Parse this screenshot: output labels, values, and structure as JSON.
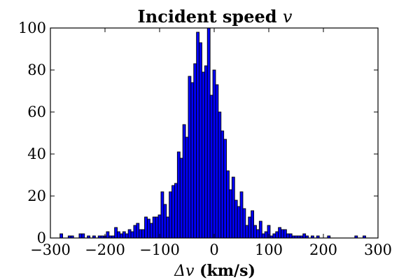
{
  "chart_data": {
    "type": "bar",
    "title_text": "Incident speed ",
    "title_var": "v",
    "xlabel_delta": "Δ",
    "xlabel_var": "v",
    "xlabel_text": " (km/s)",
    "ylabel": "",
    "xlim": [
      -300,
      300
    ],
    "ylim": [
      0,
      100
    ],
    "xticks": [
      -300,
      -200,
      -100,
      0,
      100,
      200,
      300
    ],
    "xtick_labels": [
      "−300",
      "−200",
      "−100",
      "0",
      "100",
      "200",
      "300"
    ],
    "yticks": [
      0,
      20,
      40,
      60,
      80,
      100
    ],
    "ytick_labels": [
      "0",
      "20",
      "40",
      "60",
      "80",
      "100"
    ],
    "grid": false,
    "legend": "none",
    "bar_color": "#0000ff",
    "bins": [
      {
        "x": -280,
        "count": 2
      },
      {
        "x": -270,
        "count": 0
      },
      {
        "x": -265,
        "count": 1
      },
      {
        "x": -260,
        "count": 1
      },
      {
        "x": -250,
        "count": 0
      },
      {
        "x": -245,
        "count": 2
      },
      {
        "x": -240,
        "count": 2
      },
      {
        "x": -235,
        "count": 0
      },
      {
        "x": -230,
        "count": 1
      },
      {
        "x": -225,
        "count": 0
      },
      {
        "x": -220,
        "count": 1
      },
      {
        "x": -215,
        "count": 0
      },
      {
        "x": -210,
        "count": 1
      },
      {
        "x": -205,
        "count": 1
      },
      {
        "x": -200,
        "count": 1
      },
      {
        "x": -195,
        "count": 3
      },
      {
        "x": -190,
        "count": 1
      },
      {
        "x": -185,
        "count": 1
      },
      {
        "x": -180,
        "count": 5
      },
      {
        "x": -175,
        "count": 3
      },
      {
        "x": -170,
        "count": 2
      },
      {
        "x": -165,
        "count": 3
      },
      {
        "x": -160,
        "count": 2
      },
      {
        "x": -155,
        "count": 4
      },
      {
        "x": -150,
        "count": 3
      },
      {
        "x": -145,
        "count": 6
      },
      {
        "x": -140,
        "count": 7
      },
      {
        "x": -135,
        "count": 4
      },
      {
        "x": -130,
        "count": 4
      },
      {
        "x": -125,
        "count": 10
      },
      {
        "x": -120,
        "count": 9
      },
      {
        "x": -115,
        "count": 7
      },
      {
        "x": -110,
        "count": 10
      },
      {
        "x": -105,
        "count": 10
      },
      {
        "x": -100,
        "count": 11
      },
      {
        "x": -95,
        "count": 22
      },
      {
        "x": -90,
        "count": 16
      },
      {
        "x": -85,
        "count": 10
      },
      {
        "x": -80,
        "count": 22
      },
      {
        "x": -75,
        "count": 25
      },
      {
        "x": -70,
        "count": 26
      },
      {
        "x": -65,
        "count": 41
      },
      {
        "x": -60,
        "count": 38
      },
      {
        "x": -55,
        "count": 54
      },
      {
        "x": -50,
        "count": 48
      },
      {
        "x": -45,
        "count": 77
      },
      {
        "x": -40,
        "count": 74
      },
      {
        "x": -35,
        "count": 83
      },
      {
        "x": -30,
        "count": 98
      },
      {
        "x": -25,
        "count": 93
      },
      {
        "x": -20,
        "count": 79
      },
      {
        "x": -15,
        "count": 82
      },
      {
        "x": -10,
        "count": 100
      },
      {
        "x": -5,
        "count": 68
      },
      {
        "x": 0,
        "count": 80
      },
      {
        "x": 5,
        "count": 73
      },
      {
        "x": 10,
        "count": 60
      },
      {
        "x": 15,
        "count": 51
      },
      {
        "x": 20,
        "count": 47
      },
      {
        "x": 25,
        "count": 32
      },
      {
        "x": 30,
        "count": 23
      },
      {
        "x": 35,
        "count": 29
      },
      {
        "x": 40,
        "count": 18
      },
      {
        "x": 45,
        "count": 15
      },
      {
        "x": 50,
        "count": 22
      },
      {
        "x": 55,
        "count": 14
      },
      {
        "x": 60,
        "count": 6
      },
      {
        "x": 65,
        "count": 10
      },
      {
        "x": 70,
        "count": 13
      },
      {
        "x": 75,
        "count": 6
      },
      {
        "x": 80,
        "count": 4
      },
      {
        "x": 85,
        "count": 8
      },
      {
        "x": 90,
        "count": 2
      },
      {
        "x": 95,
        "count": 3
      },
      {
        "x": 100,
        "count": 6
      },
      {
        "x": 105,
        "count": 1
      },
      {
        "x": 110,
        "count": 2
      },
      {
        "x": 115,
        "count": 3
      },
      {
        "x": 120,
        "count": 5
      },
      {
        "x": 125,
        "count": 4
      },
      {
        "x": 130,
        "count": 4
      },
      {
        "x": 135,
        "count": 2
      },
      {
        "x": 140,
        "count": 2
      },
      {
        "x": 145,
        "count": 1
      },
      {
        "x": 150,
        "count": 1
      },
      {
        "x": 155,
        "count": 1
      },
      {
        "x": 160,
        "count": 1
      },
      {
        "x": 165,
        "count": 2
      },
      {
        "x": 170,
        "count": 1
      },
      {
        "x": 180,
        "count": 1
      },
      {
        "x": 190,
        "count": 1
      },
      {
        "x": 210,
        "count": 1
      },
      {
        "x": 260,
        "count": 1
      },
      {
        "x": 275,
        "count": 1
      }
    ]
  }
}
